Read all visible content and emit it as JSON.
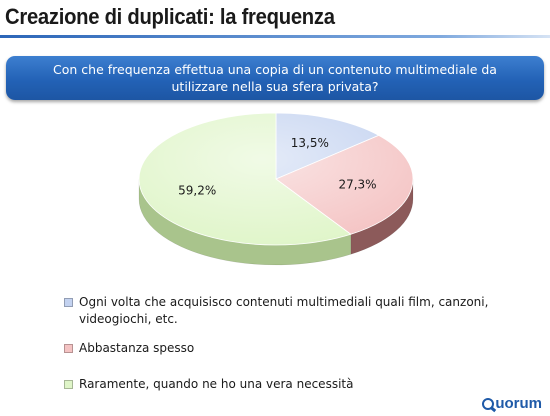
{
  "header": {
    "title": "Creazione di duplicati: la frequenza"
  },
  "question": {
    "text": "Con che frequenza effettua una copia di un contenuto multimediale da utilizzare nella sua sfera privata?"
  },
  "chart_data": {
    "type": "pie",
    "style": "3d",
    "slices": [
      {
        "label": "Ogni volta che acquisisco contenuti multimediali quali film, canzoni, videogiochi, etc.",
        "value": 13.5,
        "display": "13,5%",
        "color": "#c3d2f0",
        "color_dark": "#8c9fc8"
      },
      {
        "label": "Abbastanza spesso",
        "value": 27.3,
        "display": "27,3%",
        "color": "#f4c3c3",
        "color_dark": "#8c5a5a"
      },
      {
        "label": "Raramente, quando ne ho una vera necessità",
        "value": 59.2,
        "display": "59,2%",
        "color": "#dff5c8",
        "color_dark": "#a9c48c"
      }
    ],
    "legend_position": "bottom"
  },
  "logo": {
    "text": "uorum",
    "brand_color": "#1f5aa8"
  }
}
